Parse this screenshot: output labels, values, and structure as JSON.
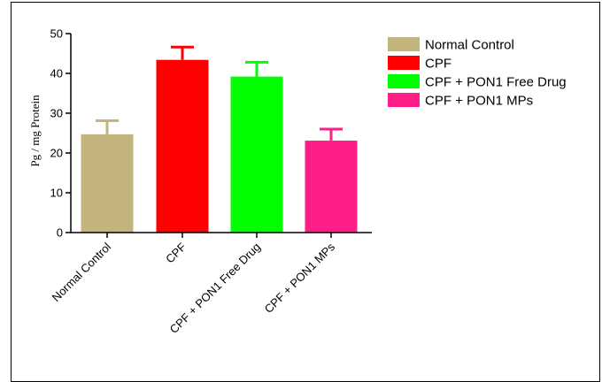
{
  "chart_data": {
    "type": "bar",
    "categories": [
      "Normal Control",
      "CPF",
      "CPF + PON1 Free Drug",
      "CPF + PON1 MPs"
    ],
    "values": [
      24.7,
      43.4,
      39.2,
      23.1
    ],
    "errors": [
      3.4,
      3.2,
      3.6,
      2.9
    ],
    "colors": [
      "#c3b47d",
      "#ff0000",
      "#00ff00",
      "#ff1e87"
    ],
    "ylabel": "Pg / mg Protein",
    "xlabel": "",
    "title": "",
    "ylim": [
      0,
      50
    ],
    "yticks": [
      0,
      10,
      20,
      30,
      40,
      50
    ],
    "legend": [
      "Normal Control",
      "CPF",
      "CPF + PON1 Free Drug",
      "CPF + PON1 MPs"
    ],
    "legend_position": "top-right",
    "grid": false
  }
}
